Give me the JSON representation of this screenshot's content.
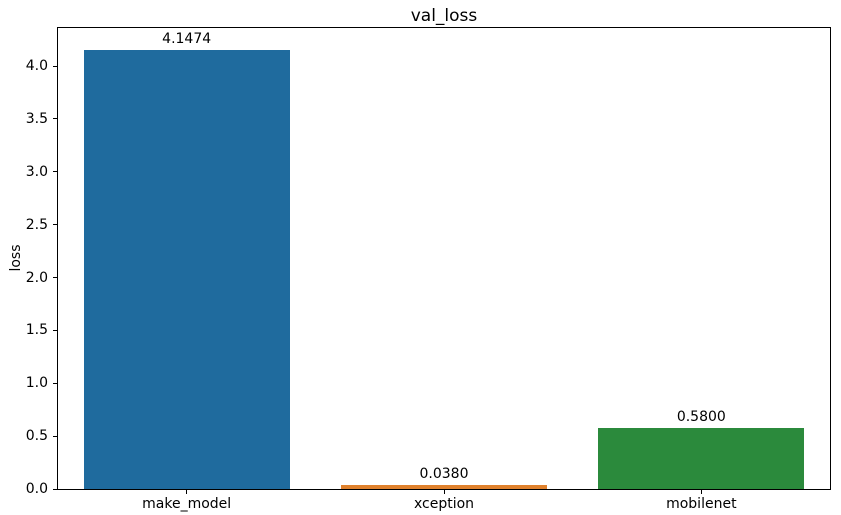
{
  "chart_data": {
    "type": "bar",
    "title": "val_loss",
    "xlabel": "",
    "ylabel": "loss",
    "categories": [
      "make_model",
      "xception",
      "mobilenet"
    ],
    "values": [
      4.1474,
      0.038,
      0.58
    ],
    "value_labels": [
      "4.1474",
      "0.0380",
      "0.5800"
    ],
    "bar_colors": [
      "#1f6b9e",
      "#e0812c",
      "#2b8a3c"
    ],
    "bar_width_fraction": 0.8,
    "ylim": [
      0,
      4.36
    ],
    "yticks": [
      0.0,
      0.5,
      1.0,
      1.5,
      2.0,
      2.5,
      3.0,
      3.5,
      4.0
    ],
    "ytick_labels": [
      "0.0",
      "0.5",
      "1.0",
      "1.5",
      "2.0",
      "2.5",
      "3.0",
      "3.5",
      "4.0"
    ],
    "grid": false,
    "legend": null,
    "background_color": "#ffffff",
    "spine_color": "#000000"
  }
}
